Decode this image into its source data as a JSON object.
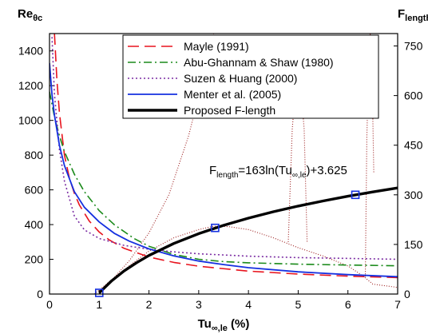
{
  "chart_data": {
    "type": "line",
    "x_axis": {
      "label_main": "Tu",
      "label_sub": "∞,le",
      "label_unit": " (%)",
      "range": [
        0,
        7
      ],
      "ticks": [
        0,
        1,
        2,
        3,
        4,
        5,
        6,
        7
      ]
    },
    "y_left": {
      "label_main": "Re",
      "label_sub": "θc",
      "range": [
        0,
        1500
      ],
      "ticks": [
        0,
        200,
        400,
        600,
        800,
        1000,
        1200,
        1400
      ]
    },
    "y_right": {
      "label_main": "F",
      "label_sub": "length",
      "range": [
        0,
        787.5
      ],
      "ticks": [
        0,
        150,
        300,
        450,
        600,
        750
      ]
    },
    "grid": false,
    "legend_position": "top-right",
    "annotation": {
      "prefix": "F",
      "prefix_sub": "length",
      "mid": "=163ln(Tu",
      "mid_sub": "∞,le",
      "suffix": ")+3.625"
    },
    "series": [
      {
        "name": "Mayle (1991)",
        "axis": "left",
        "color": "#e8141e",
        "dash": "14,7",
        "width": 1.6,
        "x": [
          0.1,
          0.15,
          0.2,
          0.3,
          0.4,
          0.5,
          0.6,
          0.8,
          1.0,
          1.2,
          1.5,
          2.0,
          2.5,
          3.0,
          4.0,
          5.0,
          6.0,
          7.0
        ],
        "y": [
          1500,
          1230,
          1040,
          800,
          668,
          580,
          513,
          420,
          357,
          312,
          263,
          213,
          182,
          160,
          132,
          115,
          103,
          95
        ]
      },
      {
        "name": "Abu-Ghannam & Shaw (1980)",
        "axis": "left",
        "color": "#1a8a1a",
        "dash": "10,4,2,4",
        "width": 1.6,
        "x": [
          0.0,
          0.1,
          0.2,
          0.3,
          0.5,
          0.7,
          1.0,
          1.3,
          1.7,
          2.0,
          2.5,
          3.0,
          3.5,
          4.0,
          5.0,
          6.0,
          7.0
        ],
        "y": [
          1165,
          1020,
          910,
          820,
          690,
          590,
          480,
          400,
          320,
          275,
          228,
          200,
          187,
          180,
          172,
          167,
          163
        ]
      },
      {
        "name": "Suzen & Huang (2000)",
        "axis": "left",
        "color": "#7b2da3",
        "dash": "2,3",
        "width": 1.6,
        "x": [
          0.05,
          0.1,
          0.2,
          0.3,
          0.5,
          0.7,
          1.0,
          1.5,
          2.0,
          2.5,
          3.0,
          4.0,
          5.0,
          6.0,
          7.0
        ],
        "y": [
          1480,
          1150,
          830,
          650,
          450,
          370,
          320,
          280,
          258,
          243,
          232,
          218,
          210,
          205,
          200
        ]
      },
      {
        "name": "Menter et al. (2005)",
        "axis": "left",
        "color": "#1530e0",
        "dash": "",
        "width": 1.8,
        "x": [
          0.0,
          0.05,
          0.1,
          0.2,
          0.3,
          0.5,
          0.7,
          1.0,
          1.3,
          1.6,
          2.0,
          2.5,
          3.0,
          3.5,
          4.0,
          5.0,
          6.0,
          7.0
        ],
        "y": [
          1330,
          1150,
          1030,
          855,
          740,
          590,
          500,
          415,
          350,
          305,
          260,
          220,
          190,
          170,
          152,
          128,
          112,
          100
        ]
      },
      {
        "name": "Proposed F-length",
        "axis": "right",
        "color": "#000000",
        "dash": "",
        "width": 3.4,
        "x": [
          1.0,
          1.25,
          1.5,
          1.75,
          2.0,
          2.5,
          3.0,
          3.5,
          4.0,
          4.5,
          5.0,
          5.5,
          6.0,
          6.5,
          7.0
        ],
        "y": [
          3.6,
          40,
          69.7,
          94.8,
          116.6,
          153,
          182.7,
          207.8,
          229.6,
          248.8,
          266,
          281.5,
          295.7,
          308.7,
          320.8
        ]
      }
    ],
    "extra_lines": [
      {
        "axis": "right",
        "color": "#9b1b1b",
        "dash": "1,2",
        "width": 1.1,
        "x": [
          0.9,
          1.0,
          1.3,
          1.6,
          2.0,
          2.4,
          2.8,
          3.0,
          3.2,
          3.3
        ],
        "y": [
          0,
          12,
          50,
          100,
          185,
          300,
          480,
          600,
          720,
          787
        ]
      },
      {
        "axis": "right",
        "color": "#9b1b1b",
        "dash": "1,2",
        "width": 1.1,
        "x": [
          1.0,
          1.3,
          1.6,
          2.0,
          2.5,
          3.0,
          3.3,
          3.6,
          4.0,
          4.5,
          5.0,
          5.5,
          6.0,
          6.3,
          6.5,
          7.0
        ],
        "y": [
          0,
          45,
          85,
          130,
          170,
          195,
          205,
          204,
          195,
          170,
          140,
          115,
          85,
          55,
          30,
          20
        ]
      },
      {
        "axis": "left",
        "color": "#9b1b1b",
        "dash": "1,2",
        "width": 1.1,
        "x": [
          4.8,
          4.88,
          4.95,
          5.0,
          5.05,
          5.12,
          5.18
        ],
        "y": [
          300,
          950,
          1200,
          1260,
          1200,
          950,
          300
        ]
      },
      {
        "axis": "left",
        "color": "#9b1b1b",
        "dash": "1,2",
        "width": 1.1,
        "x": [
          6.35,
          6.38,
          6.42,
          6.45,
          6.48,
          6.52
        ],
        "y": [
          100,
          900,
          1350,
          1500,
          1350,
          700
        ]
      }
    ],
    "markers": {
      "color": "#1530e0",
      "axis": "right",
      "x": [
        1.0,
        3.33,
        6.15
      ],
      "y": [
        3.6,
        200,
        300
      ]
    }
  }
}
